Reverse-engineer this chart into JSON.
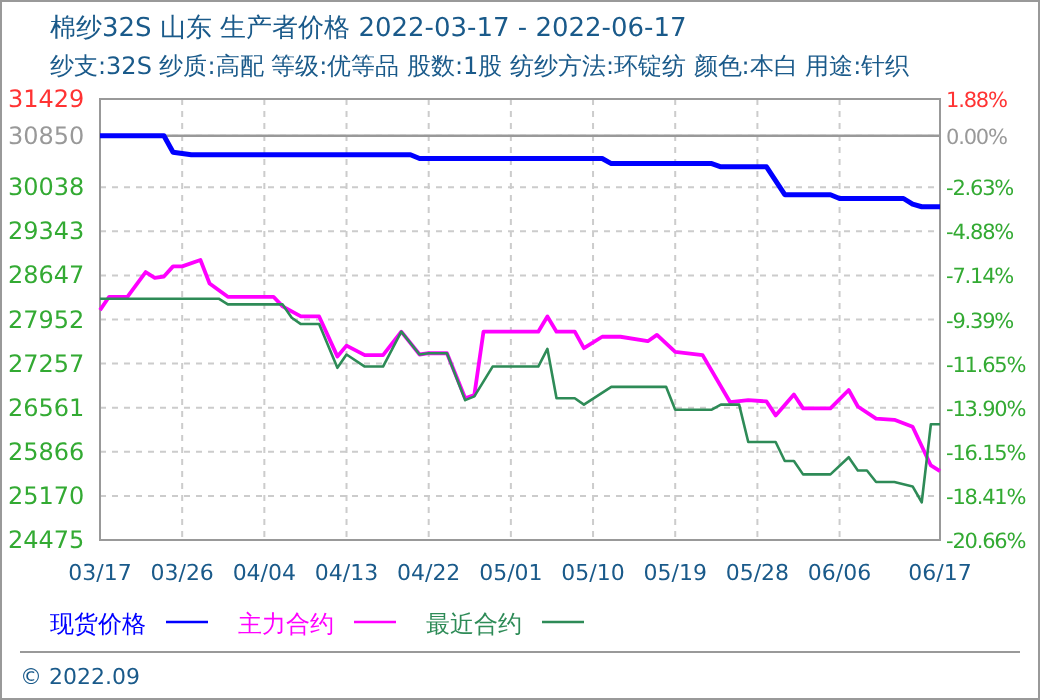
{
  "chart_data": {
    "type": "line",
    "title": "棉纱32S 山东 生产者价格 2022-03-17 - 2022-06-17",
    "subtitle": "纱支:32S 纱质:高配 等级:优等品 股数:1股 纺纱方法:环锭纺 颜色:本白 用途:针织",
    "annotations": [
      "© 2022.09"
    ],
    "xlim": [
      "2022-03-17",
      "2022-06-17"
    ],
    "xticks": [
      {
        "value": "2022-03-17",
        "label": "03/17"
      },
      {
        "value": "2022-03-26",
        "label": "03/26"
      },
      {
        "value": "2022-04-04",
        "label": "04/04"
      },
      {
        "value": "2022-04-13",
        "label": "04/13"
      },
      {
        "value": "2022-04-22",
        "label": "04/22"
      },
      {
        "value": "2022-05-01",
        "label": "05/01"
      },
      {
        "value": "2022-05-10",
        "label": "05/10"
      },
      {
        "value": "2022-05-19",
        "label": "05/19"
      },
      {
        "value": "2022-05-28",
        "label": "05/28"
      },
      {
        "value": "2022-06-06",
        "label": "06/06"
      },
      {
        "value": "2022-06-17",
        "label": "06/17"
      }
    ],
    "ylim": [
      24475,
      31429
    ],
    "yticks": [
      24475,
      25170,
      25866,
      26561,
      27257,
      27952,
      28647,
      29343,
      30038,
      30850,
      31429
    ],
    "y2lim": [
      -20.66,
      1.88
    ],
    "y2ticks": [
      {
        "value": -20.66,
        "label": "-20.66%"
      },
      {
        "value": -18.41,
        "label": "-18.41%"
      },
      {
        "value": -16.15,
        "label": "-16.15%"
      },
      {
        "value": -13.9,
        "label": "-13.90%"
      },
      {
        "value": -11.65,
        "label": "-11.65%"
      },
      {
        "value": -9.39,
        "label": "-9.39%"
      },
      {
        "value": -7.14,
        "label": "-7.14%"
      },
      {
        "value": -4.88,
        "label": "-4.88%"
      },
      {
        "value": -2.63,
        "label": "-2.63%"
      },
      {
        "value": 0,
        "label": "0.00%"
      },
      {
        "value": 1.88,
        "label": "1.88%"
      }
    ],
    "ref_lines": [
      {
        "axis": "y",
        "value": 30850,
        "color": "#999999"
      }
    ],
    "grid": true,
    "legend": "bottom",
    "line_style": "solid",
    "series": [
      {
        "name": "现货价格",
        "color": "#0000ff",
        "x": [
          "2022-03-17",
          "2022-03-24",
          "2022-03-25",
          "2022-03-27",
          "2022-04-20",
          "2022-04-21",
          "2022-05-11",
          "2022-05-12",
          "2022-05-23",
          "2022-05-24",
          "2022-05-29",
          "2022-05-31",
          "2022-06-05",
          "2022-06-06",
          "2022-06-13",
          "2022-06-14",
          "2022-06-15",
          "2022-06-17"
        ],
        "values": [
          30850,
          30850,
          30590,
          30550,
          30550,
          30490,
          30490,
          30410,
          30410,
          30360,
          30360,
          29920,
          29920,
          29860,
          29860,
          29770,
          29730,
          29730
        ]
      },
      {
        "name": "主力合约",
        "color": "#ff00ff",
        "x": [
          "2022-03-17",
          "2022-03-18",
          "2022-03-20",
          "2022-03-22",
          "2022-03-23",
          "2022-03-24",
          "2022-03-25",
          "2022-03-26",
          "2022-03-28",
          "2022-03-29",
          "2022-03-31",
          "2022-04-05",
          "2022-04-06",
          "2022-04-08",
          "2022-04-10",
          "2022-04-12",
          "2022-04-13",
          "2022-04-15",
          "2022-04-17",
          "2022-04-19",
          "2022-04-21",
          "2022-04-22",
          "2022-04-24",
          "2022-04-26",
          "2022-04-27",
          "2022-04-28",
          "2022-05-04",
          "2022-05-05",
          "2022-05-06",
          "2022-05-08",
          "2022-05-09",
          "2022-05-11",
          "2022-05-13",
          "2022-05-16",
          "2022-05-17",
          "2022-05-19",
          "2022-05-22",
          "2022-05-25",
          "2022-05-27",
          "2022-05-29",
          "2022-05-30",
          "2022-06-01",
          "2022-06-02",
          "2022-06-05",
          "2022-06-07",
          "2022-06-08",
          "2022-06-10",
          "2022-06-12",
          "2022-06-14",
          "2022-06-16",
          "2022-06-17"
        ],
        "values": [
          28100,
          28310,
          28310,
          28700,
          28610,
          28630,
          28790,
          28790,
          28890,
          28520,
          28310,
          28310,
          28160,
          28000,
          28000,
          27370,
          27540,
          27390,
          27390,
          27760,
          27400,
          27420,
          27420,
          26710,
          26760,
          27760,
          27760,
          28000,
          27760,
          27760,
          27500,
          27680,
          27680,
          27610,
          27710,
          27440,
          27390,
          26650,
          26680,
          26660,
          26440,
          26770,
          26550,
          26550,
          26840,
          26580,
          26390,
          26370,
          26260,
          25650,
          25560
        ]
      },
      {
        "name": "最近合约",
        "color": "#2e8b57",
        "x": [
          "2022-03-17",
          "2022-03-30",
          "2022-03-31",
          "2022-04-06",
          "2022-04-07",
          "2022-04-08",
          "2022-04-10",
          "2022-04-12",
          "2022-04-13",
          "2022-04-15",
          "2022-04-17",
          "2022-04-19",
          "2022-04-21",
          "2022-04-22",
          "2022-04-24",
          "2022-04-26",
          "2022-04-27",
          "2022-04-29",
          "2022-05-04",
          "2022-05-05",
          "2022-05-06",
          "2022-05-08",
          "2022-05-09",
          "2022-05-12",
          "2022-05-18",
          "2022-05-19",
          "2022-05-23",
          "2022-05-24",
          "2022-05-26",
          "2022-05-27",
          "2022-05-30",
          "2022-05-31",
          "2022-06-01",
          "2022-06-02",
          "2022-06-05",
          "2022-06-07",
          "2022-06-08",
          "2022-06-09",
          "2022-06-10",
          "2022-06-12",
          "2022-06-14",
          "2022-06-15",
          "2022-06-16",
          "2022-06-17"
        ],
        "values": [
          28280,
          28280,
          28190,
          28190,
          27980,
          27880,
          27880,
          27190,
          27400,
          27210,
          27210,
          27760,
          27400,
          27420,
          27420,
          26680,
          26740,
          27210,
          27210,
          27490,
          26710,
          26710,
          26610,
          26890,
          26890,
          26530,
          26530,
          26610,
          26610,
          26020,
          26020,
          25720,
          25720,
          25510,
          25510,
          25780,
          25570,
          25570,
          25390,
          25390,
          25320,
          25070,
          26300,
          26300
        ]
      }
    ]
  }
}
